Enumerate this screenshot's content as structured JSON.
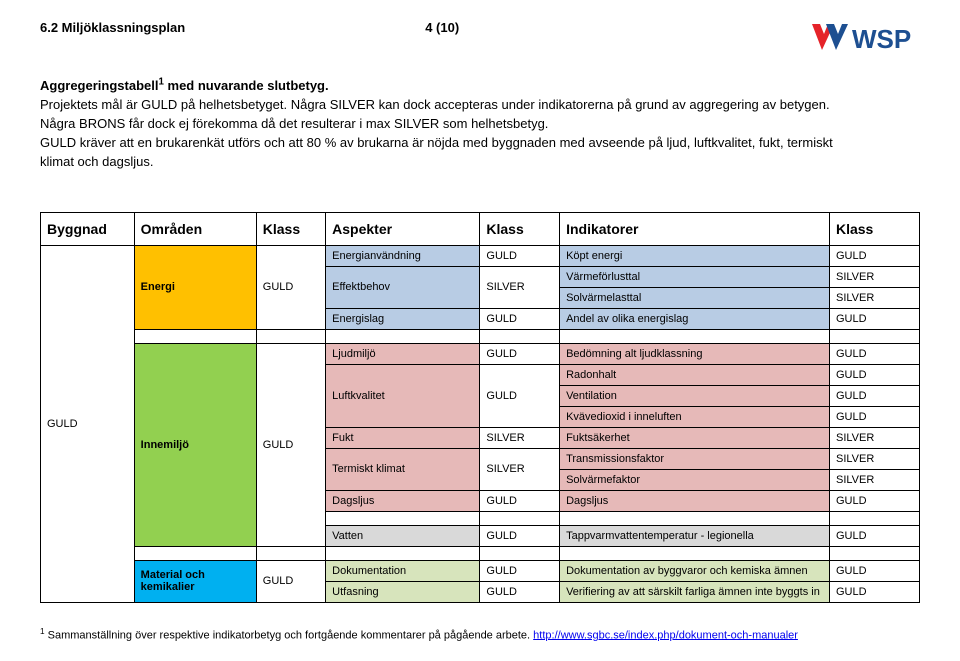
{
  "header": {
    "section": "6.2 Miljöklassningsplan",
    "page": "4 (10)",
    "logo_text": "WSP"
  },
  "intro": {
    "title": "Aggregeringstabell",
    "sup": "1",
    "title_rest": " med nuvarande slutbetyg.",
    "p1": "Projektets mål är GULD på helhetsbetyget. Några SILVER kan dock accepteras under indikatorerna på grund av aggregering av betygen. Några BRONS får dock ej förekomma då det resulterar i max SILVER som helhetsbetyg.",
    "p2": "GULD kräver att en brukarenkät utförs och att 80 % av brukarna är nöjda med byggnaden med avseende på ljud, luftkvalitet, fukt, termiskt klimat och dagsljus."
  },
  "columns": [
    "Byggnad",
    "Områden",
    "Klass",
    "Aspekter",
    "Klass",
    "Indikatorer",
    "Klass"
  ],
  "building": {
    "label": "GULD"
  },
  "areas": [
    {
      "name": "Energi",
      "klass": "GULD",
      "color": "#ffc000",
      "rows": [
        {
          "aspect": "Energianvändning",
          "aspect_klass": "GULD",
          "aspect_span": 1,
          "indicator": "Köpt energi",
          "ind_klass": "GULD",
          "bg": "#b8cce4"
        },
        {
          "aspect": "Effektbehov",
          "aspect_klass": "SILVER",
          "aspect_span": 2,
          "indicator": "Värmeförlusttal",
          "ind_klass": "SILVER",
          "bg": "#b8cce4"
        },
        {
          "indicator": "Solvärmelasttal",
          "ind_klass": "SILVER",
          "bg": "#b8cce4"
        },
        {
          "aspect": "Energislag",
          "aspect_klass": "GULD",
          "aspect_span": 1,
          "indicator": "Andel av olika energislag",
          "ind_klass": "GULD",
          "bg": "#b8cce4"
        }
      ]
    },
    {
      "name": "Innemiljö",
      "klass": "GULD",
      "color": "#92d050",
      "rows": [
        {
          "aspect": "Ljudmiljö",
          "aspect_klass": "GULD",
          "aspect_span": 1,
          "indicator": "Bedömning alt ljudklassning",
          "ind_klass": "GULD",
          "bg": "#e6b9b8"
        },
        {
          "aspect": "Luftkvalitet",
          "aspect_klass": "GULD",
          "aspect_span": 3,
          "indicator": "Radonhalt",
          "ind_klass": "GULD",
          "bg": "#e6b9b8"
        },
        {
          "indicator": "Ventilation",
          "ind_klass": "GULD",
          "bg": "#e6b9b8"
        },
        {
          "indicator": "Kvävedioxid i inneluften",
          "ind_klass": "GULD",
          "bg": "#e6b9b8"
        },
        {
          "aspect": "Fukt",
          "aspect_klass": "SILVER",
          "aspect_span": 1,
          "indicator": "Fuktsäkerhet",
          "ind_klass": "SILVER",
          "bg": "#e6b9b8"
        },
        {
          "aspect": "Termiskt klimat",
          "aspect_klass": "SILVER",
          "aspect_span": 2,
          "indicator": "Transmissionsfaktor",
          "ind_klass": "SILVER",
          "bg": "#e6b9b8"
        },
        {
          "indicator": "Solvärmefaktor",
          "ind_klass": "SILVER",
          "bg": "#e6b9b8"
        },
        {
          "aspect": "Dagsljus",
          "aspect_klass": "GULD",
          "aspect_span": 1,
          "indicator": "Dagsljus",
          "ind_klass": "GULD",
          "bg": "#e6b9b8"
        }
      ],
      "extra": {
        "aspect": "Vatten",
        "aspect_klass": "GULD",
        "indicator": "Tappvarmvattentemperatur - legionella",
        "ind_klass": "GULD",
        "bg": "#d9d9d9"
      }
    },
    {
      "name": "Material och kemikalier",
      "klass": "GULD",
      "color": "#00b0f0",
      "rows": [
        {
          "aspect": "Dokumentation",
          "aspect_klass": "GULD",
          "aspect_span": 1,
          "indicator": "Dokumentation av byggvaror och kemiska ämnen",
          "ind_klass": "GULD",
          "bg": "#d7e4bc"
        },
        {
          "aspect": "Utfasning",
          "aspect_klass": "GULD",
          "aspect_span": 1,
          "indicator": "Verifiering av att särskilt farliga ämnen inte byggts in",
          "ind_klass": "GULD",
          "bg": "#d7e4bc"
        }
      ]
    }
  ],
  "footnote": {
    "num": "1",
    "text": " Sammanställning över respektive indikatorbetyg och fortgående kommentarer på pågående arbete.  ",
    "link_text": "http://www.sgbc.se/index.php/dokument-och-manualer",
    "link_href": "http://www.sgbc.se/index.php/dokument-och-manualer"
  },
  "colwidths": [
    "72",
    "95",
    "54",
    "120",
    "62",
    "210",
    "70"
  ]
}
